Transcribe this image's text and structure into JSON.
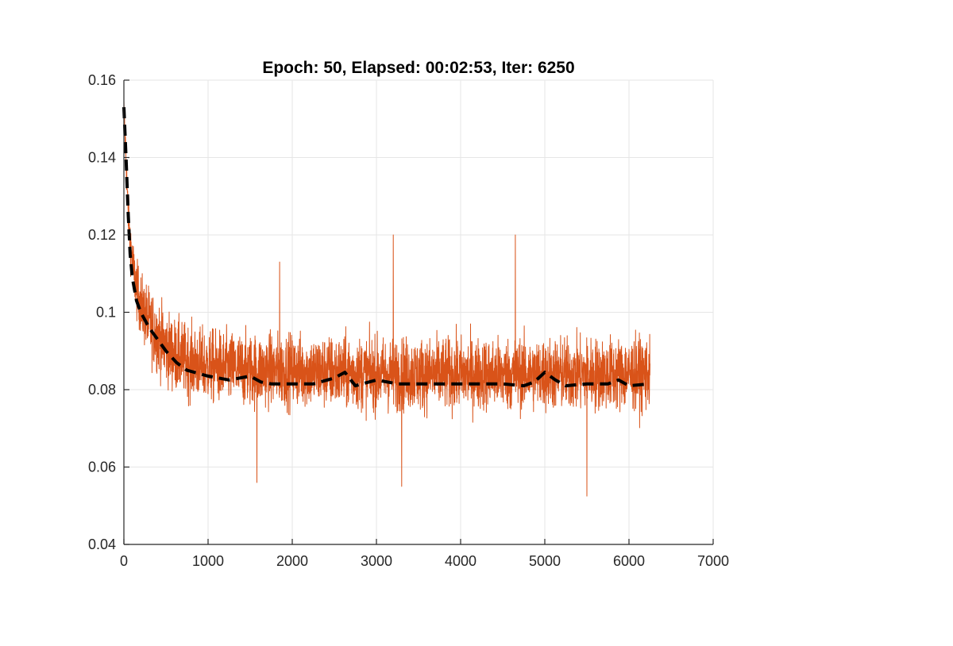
{
  "chart_data": {
    "type": "line",
    "title": "Epoch: 50, Elapsed: 00:02:53, Iter: 6250",
    "xlabel": "",
    "ylabel": "",
    "xlim": [
      0,
      7000
    ],
    "ylim": [
      0.04,
      0.16
    ],
    "x_ticks": [
      0,
      1000,
      2000,
      3000,
      4000,
      5000,
      6000,
      7000
    ],
    "x_tick_labels": [
      "0",
      "1000",
      "2000",
      "3000",
      "4000",
      "5000",
      "6000",
      "7000"
    ],
    "y_ticks": [
      0.04,
      0.06,
      0.08,
      0.1,
      0.12,
      0.14,
      0.16
    ],
    "y_tick_labels": [
      "0.04",
      "0.06",
      "0.08",
      "0.1",
      "0.12",
      "0.14",
      "0.16"
    ],
    "grid": true,
    "series": [
      {
        "style": "solid",
        "color": "#d95319",
        "noise": "high-frequency fluctuation around the trend",
        "trend_x": [
          0,
          25,
          50,
          100,
          150,
          200,
          300,
          400,
          500,
          600,
          800,
          1000,
          1500,
          2000,
          2500,
          3000,
          3500,
          4000,
          4500,
          5000,
          5500,
          6000,
          6250
        ],
        "trend_y": [
          0.152,
          0.14,
          0.125,
          0.113,
          0.106,
          0.102,
          0.097,
          0.094,
          0.091,
          0.089,
          0.087,
          0.086,
          0.085,
          0.085,
          0.0845,
          0.084,
          0.084,
          0.084,
          0.084,
          0.084,
          0.084,
          0.084,
          0.084
        ],
        "band_halfwidth_y": 0.012,
        "extremes": [
          {
            "x": 3200,
            "y": 0.12
          },
          {
            "x": 4650,
            "y": 0.12
          },
          {
            "x": 1850,
            "y": 0.113
          },
          {
            "x": 5500,
            "y": 0.0525
          },
          {
            "x": 1580,
            "y": 0.056
          },
          {
            "x": 3300,
            "y": 0.055
          }
        ]
      },
      {
        "style": "dashed",
        "color": "#000000",
        "x": [
          0,
          25,
          50,
          75,
          100,
          150,
          200,
          300,
          400,
          500,
          625,
          750,
          1000,
          1250,
          1500,
          1625,
          1750,
          2000,
          2250,
          2500,
          2625,
          2750,
          3000,
          3250,
          3500,
          3750,
          4000,
          4250,
          4500,
          4750,
          4875,
          5000,
          5125,
          5250,
          5500,
          5750,
          5875,
          6000,
          6250
        ],
        "y": [
          0.153,
          0.14,
          0.126,
          0.115,
          0.109,
          0.103,
          0.1,
          0.096,
          0.093,
          0.09,
          0.087,
          0.085,
          0.0835,
          0.0825,
          0.0835,
          0.082,
          0.0815,
          0.0815,
          0.0815,
          0.083,
          0.0845,
          0.081,
          0.0825,
          0.0815,
          0.0815,
          0.0815,
          0.0815,
          0.0815,
          0.0815,
          0.081,
          0.082,
          0.0845,
          0.0825,
          0.081,
          0.0815,
          0.0815,
          0.0825,
          0.081,
          0.0815
        ]
      }
    ]
  }
}
